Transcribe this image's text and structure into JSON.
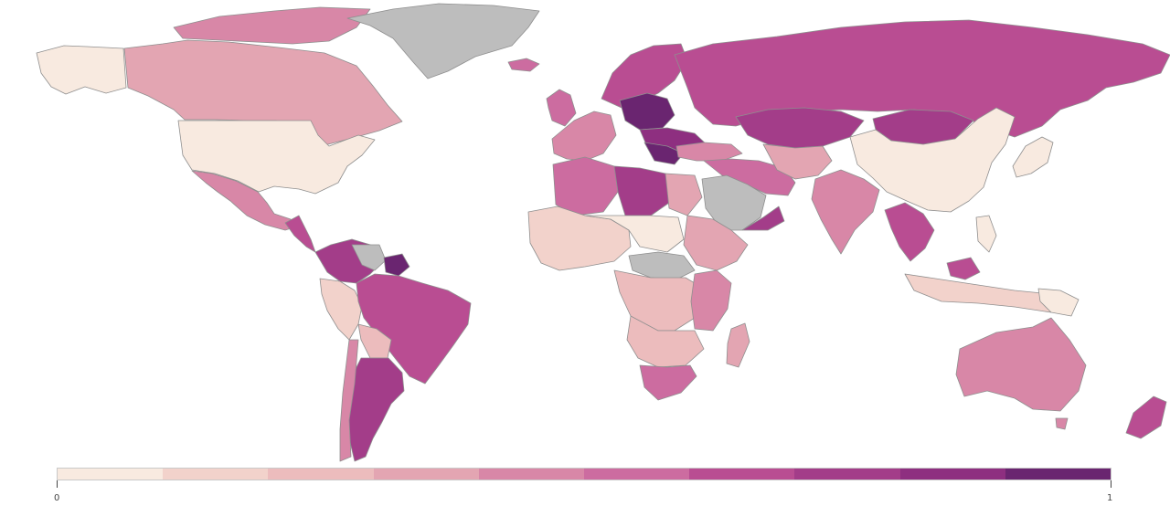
{
  "colors": {
    "missing_data": "#bdbdbd",
    "scale": [
      "#f8eae0",
      "#f2d2cb",
      "#ecbcbd",
      "#e3a5b2",
      "#d887a7",
      "#cc6ca0",
      "#b94d92",
      "#a33d89",
      "#8e2f80",
      "#6a2570"
    ],
    "background": "#ffffff",
    "border": "#8f8f8f"
  },
  "legend": {
    "min_label": "0",
    "max_label": "1"
  }
}
